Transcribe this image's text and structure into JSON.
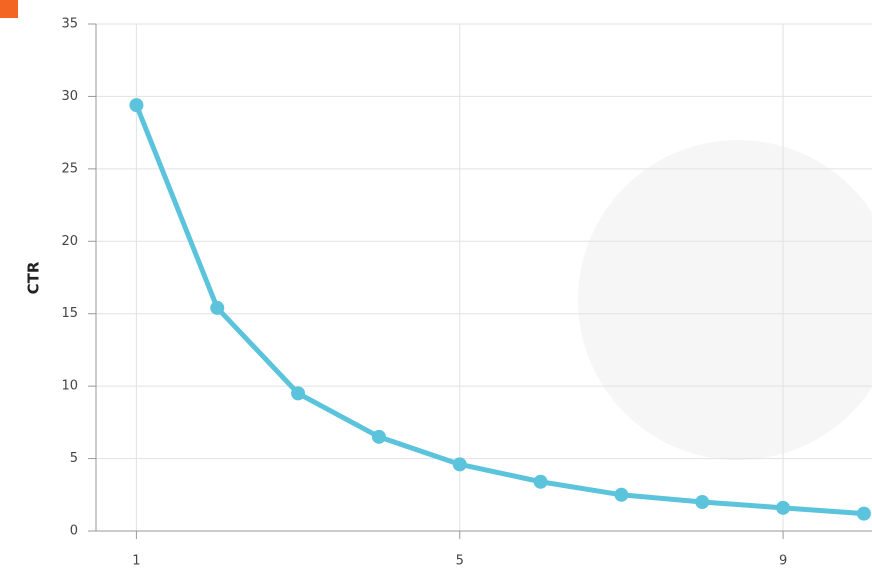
{
  "chart_data": {
    "type": "line",
    "y_label": "CTR",
    "x": [
      1,
      2,
      3,
      4,
      5,
      6,
      7,
      8,
      9,
      10
    ],
    "series": [
      {
        "color": "#5bc4dc",
        "values": [
          29.4,
          15.4,
          9.5,
          6.5,
          4.6,
          3.4,
          2.5,
          2.0,
          1.6,
          1.2
        ]
      }
    ],
    "xlim": [
      0.5,
      10.1
    ],
    "xticks": [
      1,
      5,
      9
    ],
    "ylim": [
      0,
      35
    ],
    "yticks": [
      0,
      5,
      10,
      15,
      20,
      25,
      30,
      35
    ],
    "grid": true
  }
}
